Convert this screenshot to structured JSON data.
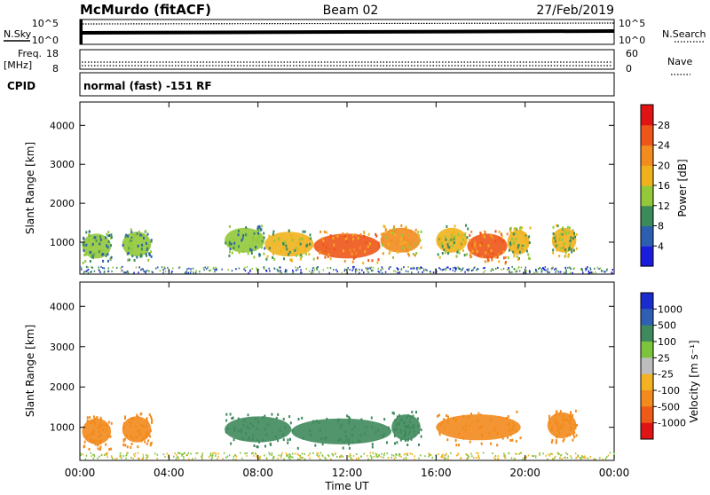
{
  "header": {
    "station": "McMurdo (fitACF)",
    "beam": "Beam 02",
    "date": "27/Feb/2019"
  },
  "noise_panel": {
    "left_label": "N.Sky",
    "left_ticks": [
      "10^5",
      "10^0"
    ],
    "right_label": "N.Search",
    "right_ticks": [
      "10^5",
      "10^0"
    ]
  },
  "freq_panel": {
    "left_label_top": "Freq.",
    "left_label_bottom": "[MHz]",
    "left_ticks": [
      "18",
      "8"
    ],
    "right_label": "Nave",
    "right_ticks": [
      "60",
      "0"
    ]
  },
  "cpid_panel": {
    "label": "CPID",
    "mode_text": "normal (fast) -151 RF"
  },
  "chart_data": [
    {
      "type": "heatmap",
      "title": "",
      "xlabel": "Time UT",
      "ylabel": "Slant Range [km]",
      "x_ticks": [
        "00:00",
        "04:00",
        "08:00",
        "12:00",
        "16:00",
        "20:00",
        "00:00"
      ],
      "y_ticks": [
        1000,
        2000,
        3000,
        4000
      ],
      "ylim": [
        180,
        4600
      ],
      "colorbar": {
        "label": "Power [dB]",
        "ticks": [
          4,
          8,
          12,
          16,
          20,
          24,
          28
        ],
        "colors": [
          "#1c1cdc",
          "#2c5fb0",
          "#3a8a5a",
          "#92c83a",
          "#f0b21c",
          "#f28c1e",
          "#ee5518",
          "#e01414"
        ]
      },
      "echo_regions": [
        {
          "t_start": 0.1,
          "t_end": 1.4,
          "range_km": 900,
          "level": 12
        },
        {
          "t_start": 1.9,
          "t_end": 3.2,
          "range_km": 950,
          "level": 12
        },
        {
          "t_start": 6.5,
          "t_end": 8.3,
          "range_km": 1050,
          "level": 14
        },
        {
          "t_start": 8.3,
          "t_end": 10.5,
          "range_km": 950,
          "level": 18
        },
        {
          "t_start": 10.5,
          "t_end": 13.5,
          "range_km": 900,
          "level": 26
        },
        {
          "t_start": 13.5,
          "t_end": 15.3,
          "range_km": 1050,
          "level": 20
        },
        {
          "t_start": 16.0,
          "t_end": 17.4,
          "range_km": 1050,
          "level": 16
        },
        {
          "t_start": 17.4,
          "t_end": 19.2,
          "range_km": 900,
          "level": 24
        },
        {
          "t_start": 19.2,
          "t_end": 20.2,
          "range_km": 1000,
          "level": 16
        },
        {
          "t_start": 21.2,
          "t_end": 22.3,
          "range_km": 1050,
          "level": 18
        }
      ]
    },
    {
      "type": "heatmap",
      "title": "",
      "xlabel": "Time UT",
      "ylabel": "Slant Range [km]",
      "x_ticks": [
        "00:00",
        "04:00",
        "08:00",
        "12:00",
        "16:00",
        "20:00",
        "00:00"
      ],
      "y_ticks": [
        1000,
        2000,
        3000,
        4000
      ],
      "ylim": [
        180,
        4600
      ],
      "colorbar": {
        "label": "Velocity [m s⁻¹]",
        "ticks": [
          1000,
          500,
          100,
          25,
          -25,
          -100,
          -500,
          -1000
        ],
        "colors": [
          "#1a2ccc",
          "#2f5fb3",
          "#3f8a5c",
          "#7cc43c",
          "#bdbdbd",
          "#f2b224",
          "#f28a1c",
          "#ee5a18",
          "#e01414"
        ]
      },
      "echo_regions": [
        {
          "t_start": 0.1,
          "t_end": 1.4,
          "range_km": 900,
          "velocity": -100
        },
        {
          "t_start": 1.9,
          "t_end": 3.2,
          "range_km": 950,
          "velocity": -100
        },
        {
          "t_start": 6.5,
          "t_end": 9.5,
          "range_km": 950,
          "velocity": 100
        },
        {
          "t_start": 9.5,
          "t_end": 14.0,
          "range_km": 900,
          "velocity": 100
        },
        {
          "t_start": 14.0,
          "t_end": 15.3,
          "range_km": 1000,
          "velocity": 100
        },
        {
          "t_start": 16.0,
          "t_end": 19.8,
          "range_km": 1000,
          "velocity": -100
        },
        {
          "t_start": 21.0,
          "t_end": 22.3,
          "range_km": 1050,
          "velocity": -100
        }
      ]
    }
  ]
}
